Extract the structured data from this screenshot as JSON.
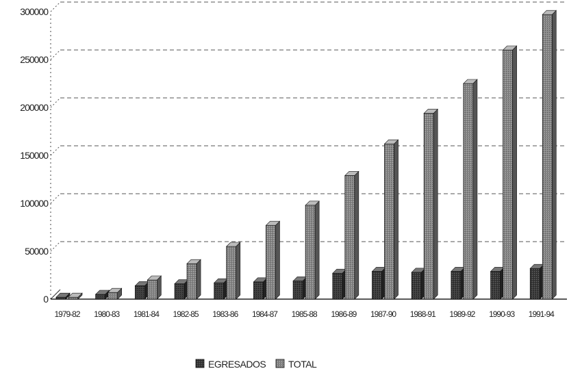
{
  "chart_data": {
    "type": "bar",
    "title": "",
    "xlabel": "",
    "ylabel": "",
    "categories": [
      "1979-82",
      "1980-83",
      "1981-84",
      "1982-85",
      "1983-86",
      "1984-87",
      "1985-88",
      "1986-89",
      "1987-90",
      "1988-91",
      "1989-92",
      "1990-93",
      "1991-94"
    ],
    "series": [
      {
        "name": "EGRESADOS",
        "values": [
          2000,
          5000,
          14000,
          16000,
          17000,
          18000,
          19000,
          27000,
          29000,
          28000,
          29000,
          29000,
          32000
        ]
      },
      {
        "name": "TOTAL",
        "values": [
          2000,
          7000,
          20000,
          37000,
          55000,
          77000,
          98000,
          129000,
          162000,
          194000,
          225000,
          260000,
          297000
        ]
      }
    ],
    "ylim": [
      0,
      300000
    ],
    "yticks": [
      "0",
      "50000",
      "100000",
      "150000",
      "200000",
      "250000",
      "300000"
    ],
    "grid": true,
    "legend_position": "bottom-center",
    "colors": {
      "EGRESADOS": "#3a3a3a",
      "TOTAL": "#8a8a8a"
    }
  }
}
